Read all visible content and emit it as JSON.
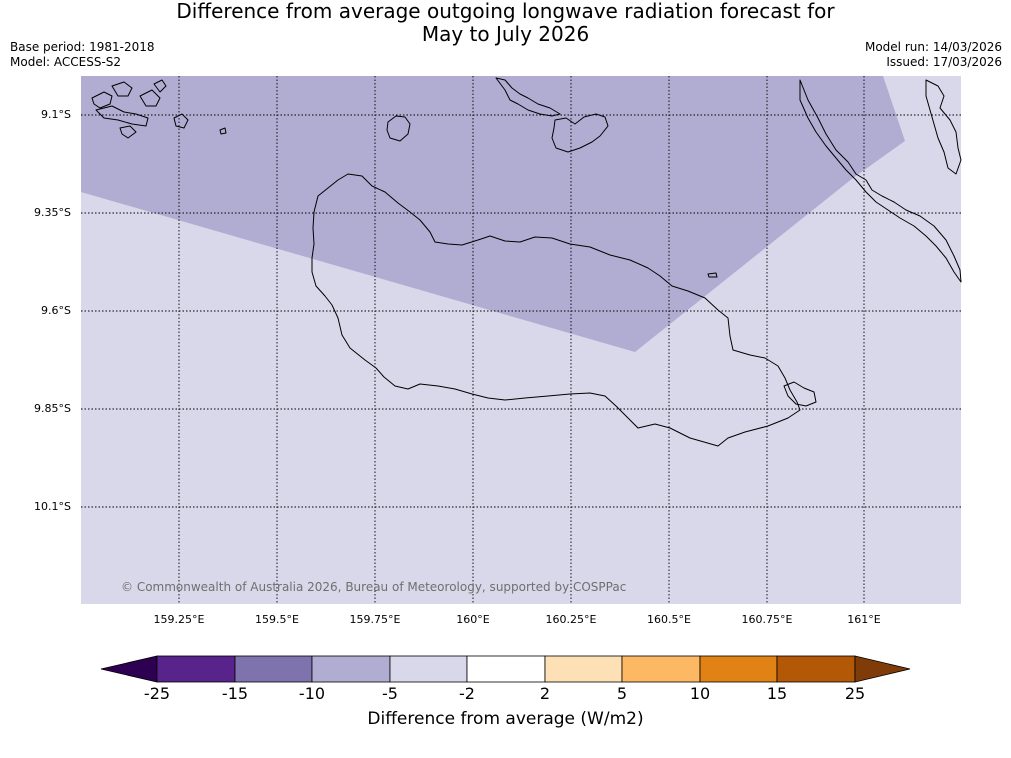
{
  "title_lines": [
    "Difference from average outgoing longwave radiation forecast for",
    "May to July 2026"
  ],
  "meta_left": {
    "base_period": "Base period: 1981-2018",
    "model": "Model: ACCESS-S2"
  },
  "meta_right": {
    "model_run": "Model run: 14/03/2026",
    "issued": "Issued: 17/03/2026"
  },
  "map": {
    "lat_labels": [
      "9.1°S",
      "9.35°S",
      "9.6°S",
      "9.85°S",
      "10.1°S"
    ],
    "lon_labels": [
      "159.25°E",
      "159.5°E",
      "159.75°E",
      "160°E",
      "160.25°E",
      "160.5°E",
      "160.75°E",
      "161°E"
    ],
    "copyright": "© Commonwealth of Australia 2026, Bureau of Meteorology, supported by COSPPac",
    "regions": [
      {
        "category": "-5 to -2",
        "color": "#d8d8ea"
      },
      {
        "category": "-10 to -5",
        "color": "#b1acd2"
      }
    ]
  },
  "colorbar": {
    "ticks": [
      "-25",
      "-15",
      "-10",
      "-5",
      "-2",
      "2",
      "5",
      "10",
      "15",
      "25"
    ],
    "colors": [
      "#2d0052",
      "#58248b",
      "#7f73ae",
      "#b1acd2",
      "#d8d8ea",
      "#ffffff",
      "#fee0b6",
      "#fdb863",
      "#e08214",
      "#b35806",
      "#7f3b08"
    ],
    "title": "Difference from average (W/m2)"
  }
}
